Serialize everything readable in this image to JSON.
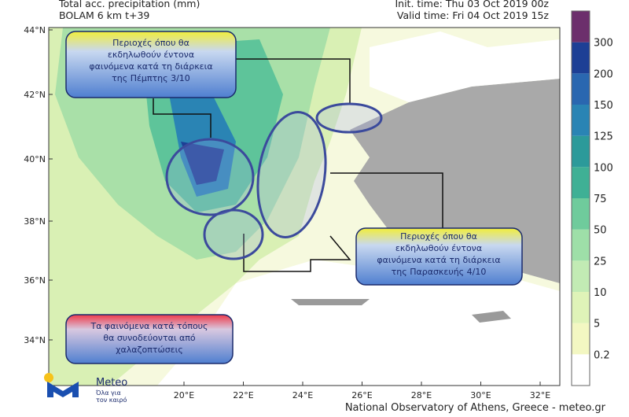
{
  "header": {
    "title": "Total acc. precipitation (mm)",
    "model": "BOLAM 6 km t+39",
    "init_time": "Init. time: Thu 03 Oct 2019 00z",
    "valid_time": "Valid time: Fri 04 Oct 2019 15z"
  },
  "map": {
    "lat_labels": [
      "44°N",
      "42°N",
      "40°N",
      "38°N",
      "36°N",
      "34°N"
    ],
    "lon_labels": [
      "20°E",
      "22°E",
      "24°E",
      "26°E",
      "28°E",
      "30°E",
      "32°E"
    ]
  },
  "colorbar": {
    "labels": [
      0.2,
      5,
      10,
      25,
      50,
      75,
      100,
      125,
      150,
      200,
      300
    ],
    "colors": [
      "#ffffff",
      "#f3f7c2",
      "#dff3b8",
      "#c2ebb4",
      "#9edfa8",
      "#6fcb9c",
      "#3fb095",
      "#2c9a9a",
      "#2a84b4",
      "#2a67b0",
      "#1d3f95",
      "#6c2f6c"
    ]
  },
  "callouts": [
    {
      "lines": [
        "Περιοχές όπου θα",
        "εκδηλωθούν έντονα",
        "φαινόμενα κατά τη διάρκεια",
        "της Πέμπτης 3/10"
      ]
    },
    {
      "lines": [
        "Περιοχές όπου θα",
        "εκδηλωθούν έντονα",
        "φαινόμενα κατά τη διάρκεια",
        "της Παρασκευής 4/10"
      ]
    },
    {
      "lines": [
        "Τα φαινόμενα κατά τόπους",
        "θα συνοδεύονται από",
        "χαλαζοπτώσεις"
      ]
    }
  ],
  "logo": {
    "name": "Meteo",
    "tagline_1": "Όλα για",
    "tagline_2": "τον καιρό"
  },
  "footer": "National Observatory of Athens, Greece - meteo.gr"
}
